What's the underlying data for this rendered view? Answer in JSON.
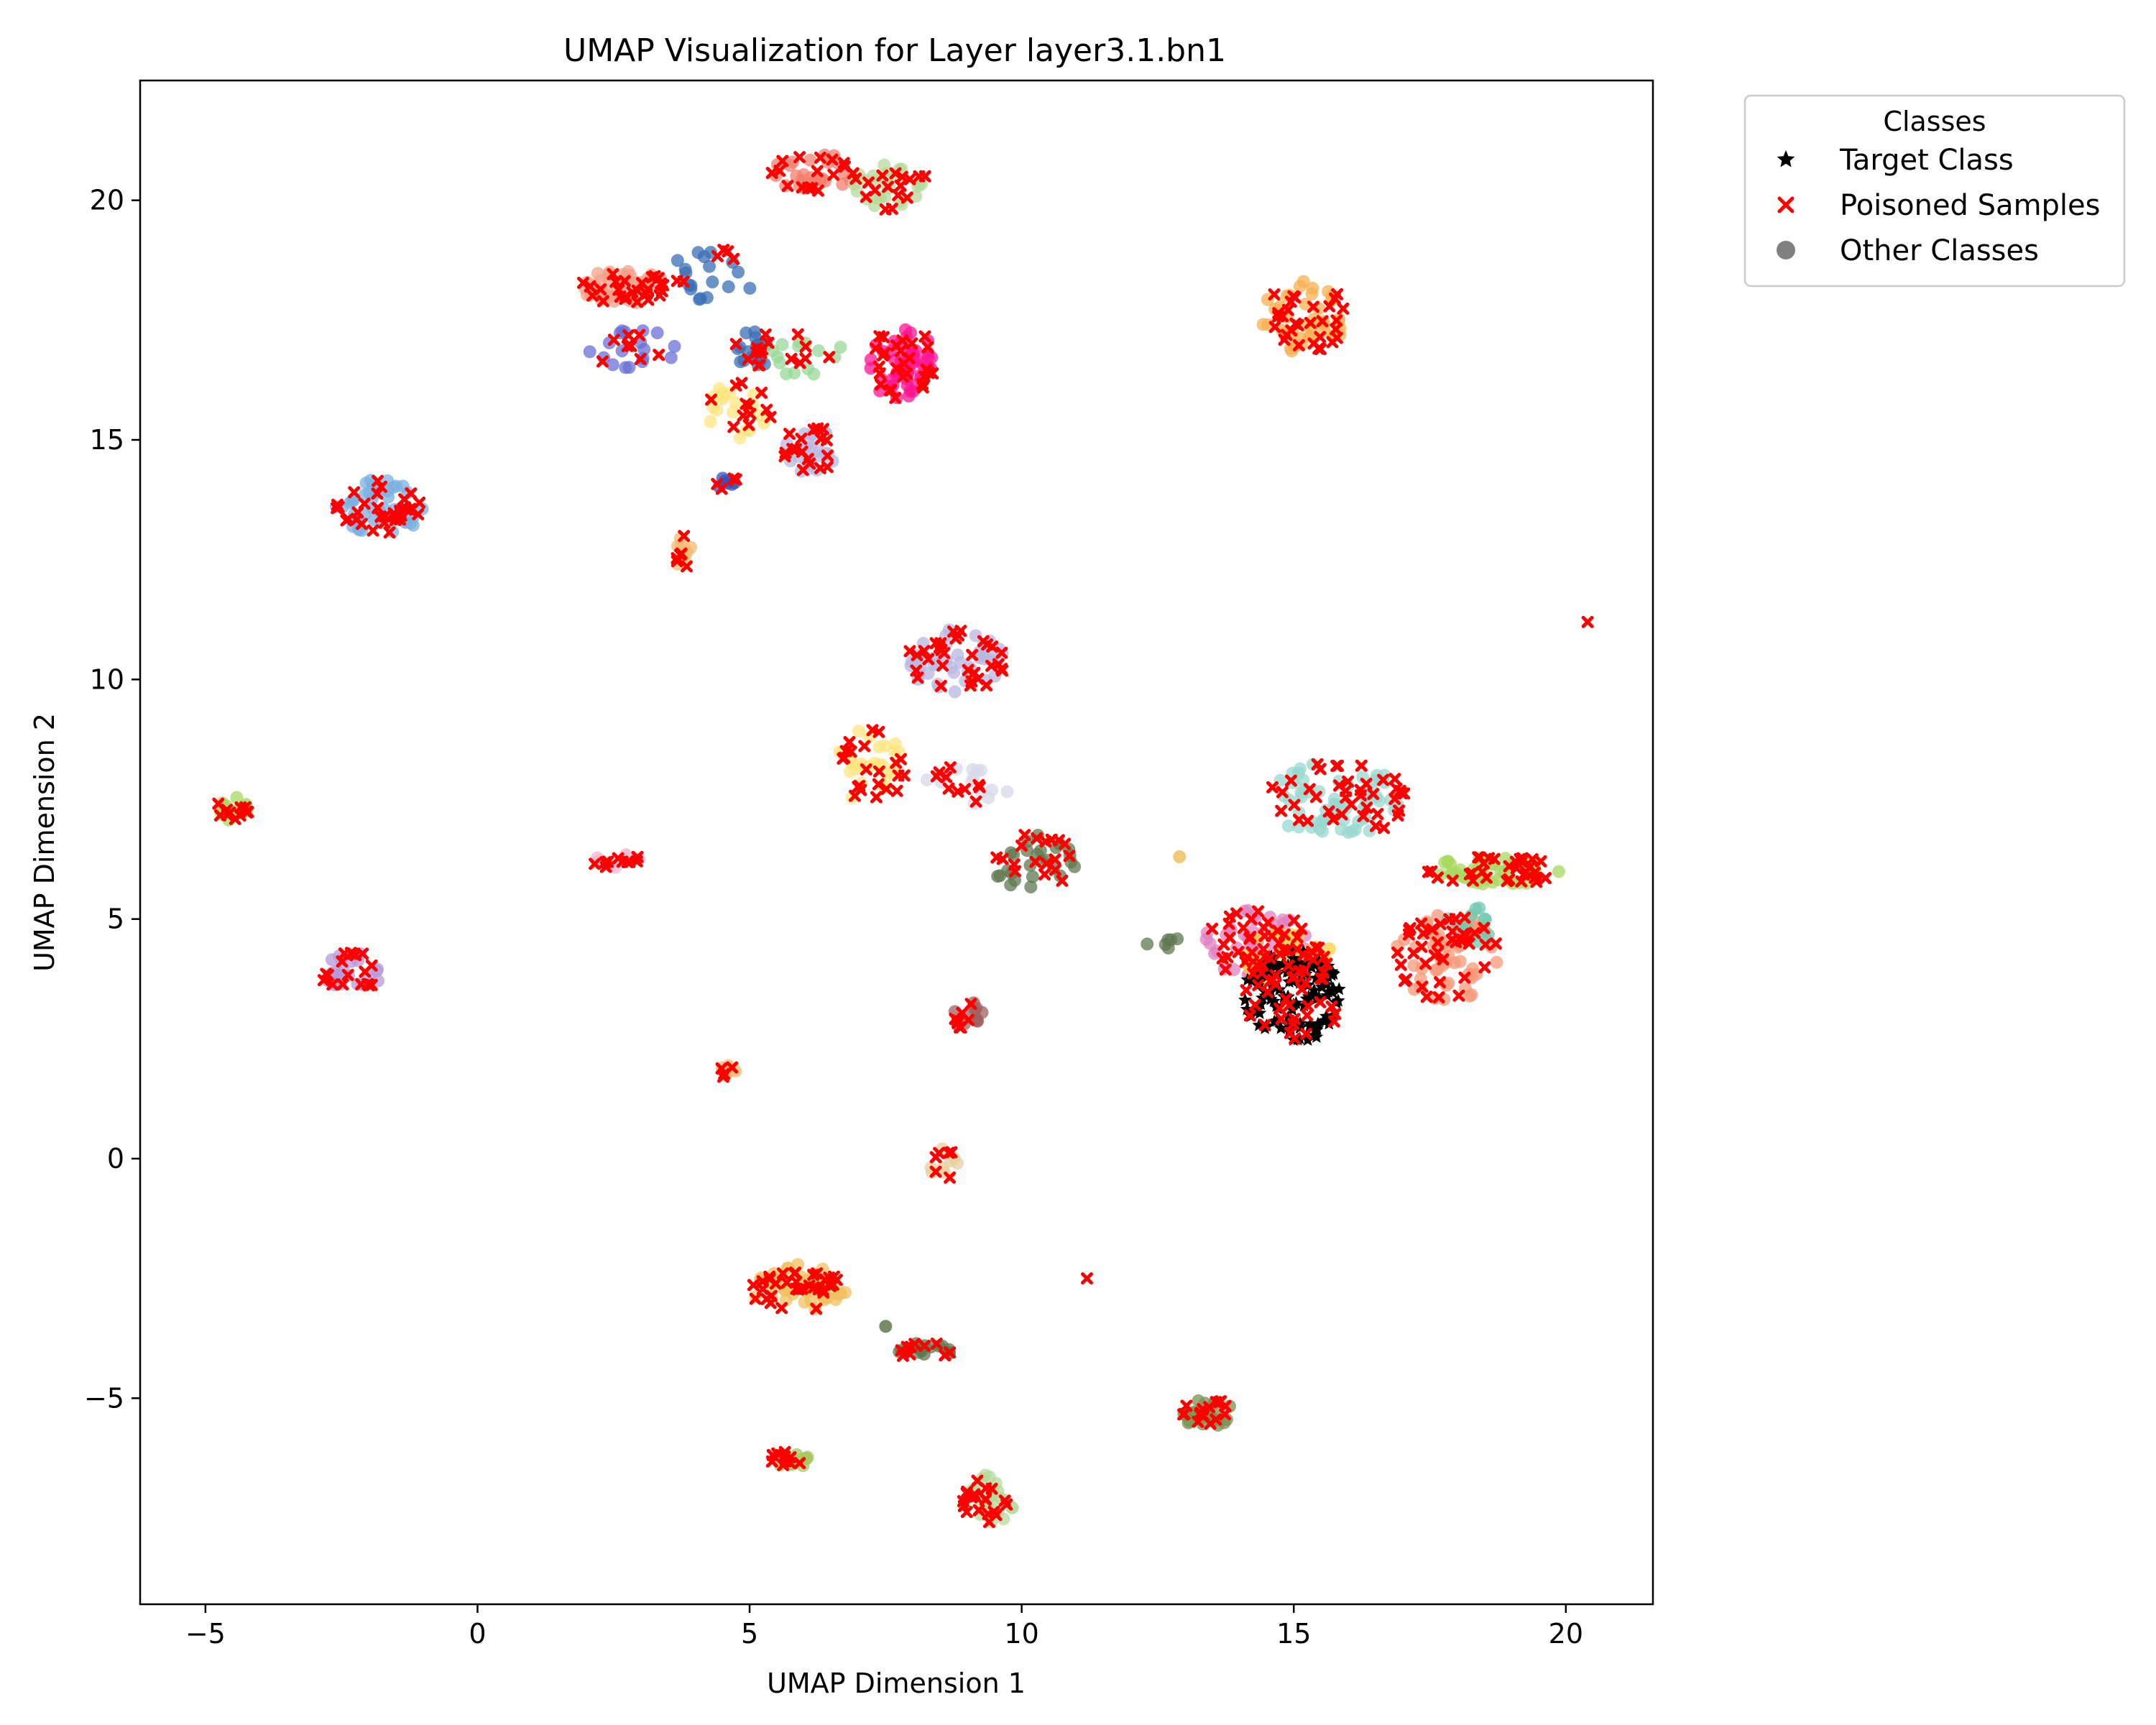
{
  "chart_data": {
    "type": "scatter",
    "title": "UMAP Visualization for Layer layer3.1.bn1",
    "xlabel": "UMAP Dimension 1",
    "ylabel": "UMAP Dimension 2",
    "xlim": [
      -6.2,
      21.6
    ],
    "ylim": [
      -9.3,
      22.5
    ],
    "xticks": [
      -5,
      0,
      5,
      10,
      15,
      20
    ],
    "yticks": [
      -5,
      0,
      5,
      10,
      15,
      20
    ],
    "xtick_labels": [
      "−5",
      "0",
      "5",
      "10",
      "15",
      "20"
    ],
    "ytick_labels": [
      "−5",
      "0",
      "5",
      "10",
      "15",
      "20"
    ],
    "grid": false,
    "legend": {
      "title": "Classes",
      "placement": "outside upper right",
      "entries": [
        {
          "label": "Target Class",
          "marker": "star",
          "color": "#000000"
        },
        {
          "label": "Poisoned Samples",
          "marker": "x",
          "color": "#ff0000"
        },
        {
          "label": "Other Classes",
          "marker": "circle",
          "color": "#808080"
        }
      ]
    },
    "clusters": [
      {
        "cx": 6.2,
        "cy": 20.6,
        "rx": 0.8,
        "ry": 0.4,
        "n": 26,
        "color": "#f08070",
        "poison": 16
      },
      {
        "cx": 7.6,
        "cy": 20.3,
        "rx": 0.7,
        "ry": 0.5,
        "n": 24,
        "color": "#b5d99c",
        "poison": 16
      },
      {
        "cx": 2.7,
        "cy": 18.2,
        "rx": 0.8,
        "ry": 0.35,
        "n": 40,
        "color": "#f4a08a",
        "poison": 26
      },
      {
        "cx": 4.3,
        "cy": 18.4,
        "rx": 0.8,
        "ry": 0.6,
        "n": 18,
        "color": "#3a6fb6",
        "poison": 6
      },
      {
        "cx": 2.9,
        "cy": 16.9,
        "rx": 0.9,
        "ry": 0.4,
        "n": 18,
        "color": "#6b6fd4",
        "poison": 8
      },
      {
        "cx": 5.1,
        "cy": 16.9,
        "rx": 0.4,
        "ry": 0.4,
        "n": 16,
        "color": "#3a6fb6",
        "poison": 10
      },
      {
        "cx": 6.0,
        "cy": 16.8,
        "rx": 0.7,
        "ry": 0.5,
        "n": 14,
        "color": "#98d898",
        "poison": 6
      },
      {
        "cx": 7.8,
        "cy": 16.6,
        "rx": 0.6,
        "ry": 0.8,
        "n": 45,
        "color": "#ff1493",
        "poison": 28
      },
      {
        "cx": 4.8,
        "cy": 15.6,
        "rx": 0.6,
        "ry": 0.6,
        "n": 18,
        "color": "#ffe680",
        "poison": 12
      },
      {
        "cx": 6.1,
        "cy": 14.8,
        "rx": 0.5,
        "ry": 0.5,
        "n": 24,
        "color": "#b8b8e0",
        "poison": 18
      },
      {
        "cx": 4.6,
        "cy": 14.1,
        "rx": 0.2,
        "ry": 0.2,
        "n": 6,
        "color": "#3a4fb6",
        "poison": 4
      },
      {
        "cx": 3.8,
        "cy": 12.6,
        "rx": 0.15,
        "ry": 0.4,
        "n": 8,
        "color": "#f5b870",
        "poison": 6
      },
      {
        "cx": -1.8,
        "cy": 13.6,
        "rx": 0.8,
        "ry": 0.6,
        "n": 45,
        "color": "#7ab0e0",
        "poison": 36
      },
      {
        "cx": 15.2,
        "cy": 17.6,
        "rx": 0.8,
        "ry": 0.8,
        "n": 40,
        "color": "#f8b050",
        "poison": 30
      },
      {
        "cx": 8.8,
        "cy": 10.4,
        "rx": 0.9,
        "ry": 0.7,
        "n": 45,
        "color": "#b8b8e0",
        "poison": 32
      },
      {
        "cx": 7.2,
        "cy": 8.2,
        "rx": 0.7,
        "ry": 0.8,
        "n": 26,
        "color": "#ffe680",
        "poison": 22
      },
      {
        "cx": 9.0,
        "cy": 7.8,
        "rx": 0.9,
        "ry": 0.4,
        "n": 14,
        "color": "#d8d8e8",
        "poison": 10
      },
      {
        "cx": 10.2,
        "cy": 6.2,
        "rx": 0.8,
        "ry": 0.6,
        "n": 26,
        "color": "#607850",
        "poison": 18
      },
      {
        "cx": -4.5,
        "cy": 7.3,
        "rx": 0.3,
        "ry": 0.25,
        "n": 18,
        "color": "#a8d860",
        "poison": 12
      },
      {
        "cx": 2.6,
        "cy": 6.2,
        "rx": 0.5,
        "ry": 0.15,
        "n": 12,
        "color": "#f0b8d0",
        "poison": 10
      },
      {
        "cx": -2.3,
        "cy": 3.9,
        "rx": 0.6,
        "ry": 0.4,
        "n": 24,
        "color": "#b898d8",
        "poison": 18
      },
      {
        "cx": 9.0,
        "cy": 3.0,
        "rx": 0.3,
        "ry": 0.3,
        "n": 12,
        "color": "#a06060",
        "poison": 8
      },
      {
        "cx": 4.6,
        "cy": 1.8,
        "rx": 0.15,
        "ry": 0.15,
        "n": 6,
        "color": "#f5b870",
        "poison": 4
      },
      {
        "cx": 8.6,
        "cy": -0.1,
        "rx": 0.3,
        "ry": 0.35,
        "n": 8,
        "color": "#e8d0a0",
        "poison": 6
      },
      {
        "cx": 5.9,
        "cy": -2.7,
        "rx": 0.9,
        "ry": 0.5,
        "n": 45,
        "color": "#f0c060",
        "poison": 34
      },
      {
        "cx": 8.2,
        "cy": -4.0,
        "rx": 0.6,
        "ry": 0.15,
        "n": 14,
        "color": "#607850",
        "poison": 10
      },
      {
        "cx": 13.4,
        "cy": -5.3,
        "rx": 0.5,
        "ry": 0.3,
        "n": 24,
        "color": "#7a9050",
        "poison": 16
      },
      {
        "cx": 5.7,
        "cy": -6.3,
        "rx": 0.4,
        "ry": 0.2,
        "n": 14,
        "color": "#a8c860",
        "poison": 10
      },
      {
        "cx": 9.4,
        "cy": -7.1,
        "rx": 0.5,
        "ry": 0.5,
        "n": 24,
        "color": "#b5d99c",
        "poison": 20
      },
      {
        "cx": 15.8,
        "cy": 7.5,
        "rx": 1.3,
        "ry": 0.8,
        "n": 60,
        "color": "#98d8d0",
        "poison": 40
      },
      {
        "cx": 18.7,
        "cy": 6.0,
        "rx": 1.3,
        "ry": 0.3,
        "n": 45,
        "color": "#a8d860",
        "poison": 32
      },
      {
        "cx": 17.8,
        "cy": 4.2,
        "rx": 1.0,
        "ry": 0.9,
        "n": 50,
        "color": "#f89878",
        "poison": 38
      },
      {
        "cx": 18.2,
        "cy": 4.8,
        "rx": 0.4,
        "ry": 0.6,
        "n": 14,
        "color": "#70c8b0",
        "poison": 2
      },
      {
        "cx": 14.3,
        "cy": 4.5,
        "rx": 1.0,
        "ry": 0.7,
        "n": 50,
        "color": "#e080c0",
        "poison": 30
      },
      {
        "cx": 14.9,
        "cy": 4.2,
        "rx": 0.8,
        "ry": 0.6,
        "n": 40,
        "color": "#ffd040",
        "poison": 20
      },
      {
        "cx": 12.6,
        "cy": 4.5,
        "rx": 0.4,
        "ry": 0.15,
        "n": 6,
        "color": "#607850",
        "poison": 0
      }
    ],
    "target_class": {
      "cx": 15.0,
      "cy": 3.4,
      "rx": 0.9,
      "ry": 1.0,
      "n": 130,
      "color": "#000000"
    },
    "outliers": [
      {
        "x": 20.4,
        "y": 11.2,
        "kind": "poison"
      },
      {
        "x": 11.2,
        "y": -2.5,
        "kind": "poison"
      },
      {
        "x": 7.5,
        "y": -3.5,
        "kind": "other",
        "color": "#607850"
      },
      {
        "x": 12.9,
        "y": 6.3,
        "kind": "other",
        "color": "#f0c060"
      }
    ]
  }
}
